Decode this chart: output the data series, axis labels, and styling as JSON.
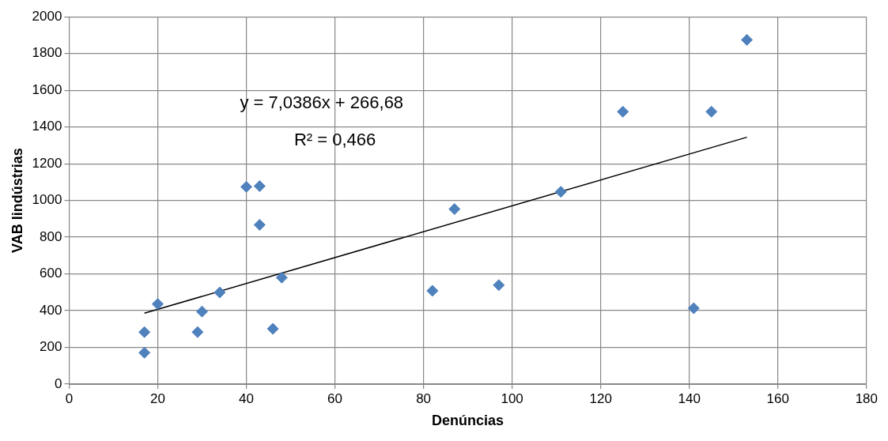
{
  "chart_data": {
    "type": "scatter",
    "xlabel": "Denúncias",
    "ylabel": "VAB Iindústrias",
    "xlim": [
      0,
      180
    ],
    "xticks": [
      0,
      20,
      40,
      60,
      80,
      100,
      120,
      140,
      160,
      180
    ],
    "ylim": [
      0,
      2000
    ],
    "yticks": [
      0,
      200,
      400,
      600,
      800,
      1000,
      1200,
      1400,
      1600,
      1800,
      2000
    ],
    "grid": true,
    "marker": "diamond",
    "legend": false,
    "series": [
      {
        "color": "#4f81bd",
        "x": [
          17,
          17,
          20,
          29,
          30,
          34,
          40,
          43,
          43,
          46,
          48,
          82,
          87,
          97,
          111,
          125,
          141,
          145,
          153
        ],
        "values": [
          283,
          171,
          436,
          283,
          395,
          499,
          1074,
          1078,
          867,
          301,
          580,
          508,
          953,
          539,
          1047,
          1483,
          413,
          1483,
          1874
        ]
      },
      {
        "type": "line",
        "marker": "none",
        "color": "#000000",
        "x": [
          17,
          153
        ],
        "values": [
          386,
          1344
        ]
      }
    ],
    "annotations": [
      "y = 7,0386x + 266,68",
      "R² = 0,466"
    ]
  }
}
